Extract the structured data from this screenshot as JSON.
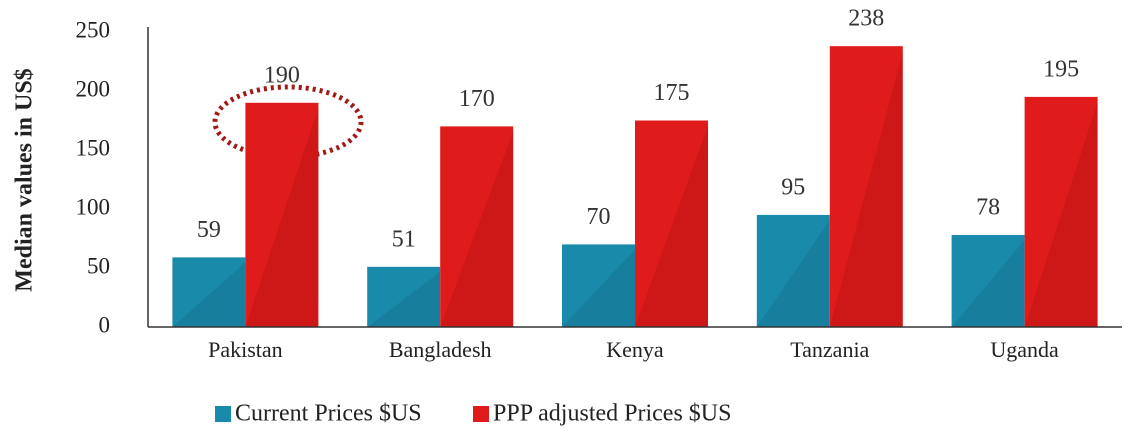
{
  "chart_data": {
    "type": "bar",
    "y_axis_label": "Median values in US$",
    "categories": [
      "Pakistan",
      "Bangladesh",
      "Kenya",
      "Tanzania",
      "Uganda"
    ],
    "series": [
      {
        "name": "Current Prices $US",
        "color": "#1a8aab",
        "values": [
          59,
          51,
          70,
          95,
          78
        ]
      },
      {
        "name": "PPP adjusted Prices $US",
        "color": "#e01b1b",
        "values": [
          190,
          170,
          175,
          238,
          195
        ]
      }
    ],
    "ylim": [
      0,
      250
    ],
    "yticks": [
      0,
      50,
      100,
      150,
      200,
      250
    ],
    "legend": "bottom"
  }
}
